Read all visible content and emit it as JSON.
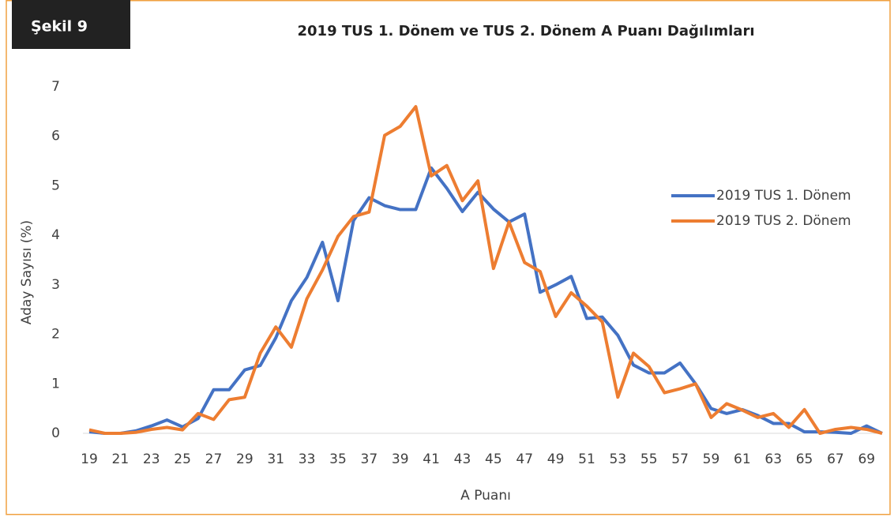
{
  "chart_data": {
    "type": "line",
    "figure_label": "Şekil 9",
    "title": "2019 TUS 1. Dönem ve TUS 2. Dönem A Puanı Dağılımları",
    "x_label": "A Puanı",
    "y_label": "Aday Sayısı (%)",
    "x": [
      19,
      20,
      21,
      22,
      23,
      24,
      25,
      26,
      27,
      28,
      29,
      30,
      31,
      32,
      33,
      34,
      35,
      36,
      37,
      38,
      39,
      40,
      41,
      42,
      43,
      44,
      45,
      46,
      47,
      48,
      49,
      50,
      51,
      52,
      53,
      54,
      55,
      56,
      57,
      58,
      59,
      60,
      61,
      62,
      63,
      64,
      65,
      66,
      67,
      68,
      69,
      70
    ],
    "xlim": [
      19,
      70
    ],
    "xticks": [
      19,
      21,
      23,
      25,
      27,
      29,
      31,
      33,
      35,
      37,
      39,
      41,
      43,
      45,
      47,
      49,
      51,
      53,
      55,
      57,
      59,
      61,
      63,
      65,
      67,
      69
    ],
    "ylim": [
      0,
      7
    ],
    "yticks": [
      0,
      1,
      2,
      3,
      4,
      5,
      6,
      7
    ],
    "grid": false,
    "legend": "right",
    "series": [
      {
        "name": "2019 TUS 1. Dönem",
        "color": "#4472c4",
        "values": [
          0.03,
          0,
          0,
          0.05,
          0.15,
          0.27,
          0.13,
          0.3,
          0.88,
          0.88,
          1.28,
          1.37,
          1.93,
          2.68,
          3.15,
          3.86,
          2.68,
          4.3,
          4.76,
          4.6,
          4.52,
          4.52,
          5.36,
          4.95,
          4.48,
          4.87,
          4.53,
          4.27,
          4.43,
          2.85,
          3.0,
          3.17,
          2.32,
          2.35,
          1.98,
          1.38,
          1.22,
          1.22,
          1.42,
          1.0,
          0.5,
          0.4,
          0.48,
          0.36,
          0.2,
          0.2,
          0.03,
          0.03,
          0.02,
          0,
          0.15,
          0
        ]
      },
      {
        "name": "2019 TUS 2. Dönem",
        "color": "#ed7d31",
        "values": [
          0.07,
          0,
          0,
          0.02,
          0.08,
          0.12,
          0.07,
          0.4,
          0.28,
          0.68,
          0.73,
          1.62,
          2.15,
          1.74,
          2.72,
          3.3,
          3.98,
          4.38,
          4.47,
          6.02,
          6.2,
          6.6,
          5.2,
          5.41,
          4.7,
          5.1,
          3.33,
          4.27,
          3.45,
          3.27,
          2.36,
          2.84,
          2.57,
          2.25,
          0.73,
          1.62,
          1.35,
          0.82,
          0.9,
          1.0,
          0.32,
          0.6,
          0.47,
          0.32,
          0.4,
          0.12,
          0.48,
          0,
          0.08,
          0.12,
          0.08,
          0
        ]
      }
    ]
  }
}
